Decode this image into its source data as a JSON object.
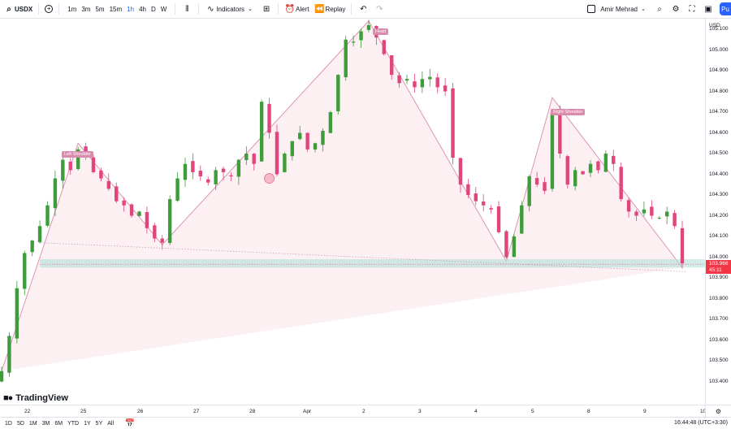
{
  "toolbar": {
    "symbol": "USDX",
    "add_label": "+",
    "timeframes": [
      "1m",
      "3m",
      "5m",
      "15m",
      "1h",
      "4h",
      "D",
      "W"
    ],
    "active_timeframe": "1h",
    "indicators_label": "Indicators",
    "alert_label": "Alert",
    "replay_label": "Replay",
    "user_name": "Amir Mehrad",
    "publish_label": "Pu"
  },
  "price_axis": {
    "currency": "USD",
    "ticks": [
      "105.100",
      "105.000",
      "104.900",
      "104.800",
      "104.700",
      "104.600",
      "104.500",
      "104.400",
      "104.300",
      "104.200",
      "104.100",
      "104.000",
      "103.900",
      "103.800",
      "103.700",
      "103.600",
      "103.500",
      "103.400"
    ],
    "last_price": "103.966",
    "countdown": "45:11"
  },
  "time_axis": {
    "ticks": [
      "22",
      "25",
      "26",
      "27",
      "28",
      "Apr",
      "2",
      "3",
      "4",
      "5",
      "8",
      "9",
      "10"
    ]
  },
  "pattern": {
    "left_shoulder": "Left Shoulder",
    "head": "Head",
    "right_shoulder": "Right Shoulder"
  },
  "bottombar": {
    "ranges": [
      "1D",
      "5D",
      "1M",
      "3M",
      "6M",
      "YTD",
      "1Y",
      "5Y",
      "All"
    ],
    "clock": "16:44:48 (UTC+3:30)"
  },
  "logo": {
    "text": "TradingView"
  },
  "colors": {
    "up": "#089981",
    "up_green": "#3c9d3a",
    "down": "#e0457b",
    "accent": "#2962ff",
    "zone": "#b2dfdb",
    "pattern_fill": "#fbe9ee",
    "pattern_line": "#d98bad"
  },
  "chart_data": {
    "type": "candlestick",
    "symbol": "USDX",
    "interval": "1h",
    "ylim": [
      103.4,
      105.15
    ],
    "last_price": 103.966,
    "pivots": [
      {
        "label": "Left Shoulder",
        "price": 104.55
      },
      {
        "label": "Head",
        "price": 105.14
      },
      {
        "label": "Right Shoulder",
        "price": 104.77
      }
    ],
    "support_zone": [
      103.95,
      103.99
    ],
    "close_path": [
      103.45,
      103.62,
      103.85,
      104.02,
      104.08,
      104.15,
      104.25,
      104.38,
      104.47,
      104.42,
      104.52,
      104.48,
      104.41,
      104.38,
      104.33,
      104.27,
      104.25,
      104.2,
      104.22,
      104.14,
      104.09,
      104.07,
      104.28,
      104.38,
      104.45,
      104.41,
      104.39,
      104.36,
      104.42,
      104.41,
      104.39,
      104.47,
      104.5,
      104.45,
      104.75,
      104.6,
      104.4,
      104.5,
      104.56,
      104.6,
      104.52,
      104.55,
      104.61,
      104.7,
      104.88,
      105.05,
      105.04,
      105.09,
      105.12,
      105.06,
      104.98,
      104.88,
      104.84,
      104.86,
      104.82,
      104.86,
      104.87,
      104.82,
      104.8,
      104.48,
      104.35,
      104.3,
      104.27,
      104.25,
      104.23,
      104.12,
      104.0,
      104.1,
      104.25,
      104.39,
      104.35,
      104.32,
      104.7,
      104.5,
      104.35,
      104.42,
      104.4,
      104.45,
      104.42,
      104.5,
      104.45,
      104.28,
      104.22,
      104.2,
      104.23,
      104.2,
      104.19,
      104.22,
      104.15,
      103.97
    ]
  }
}
